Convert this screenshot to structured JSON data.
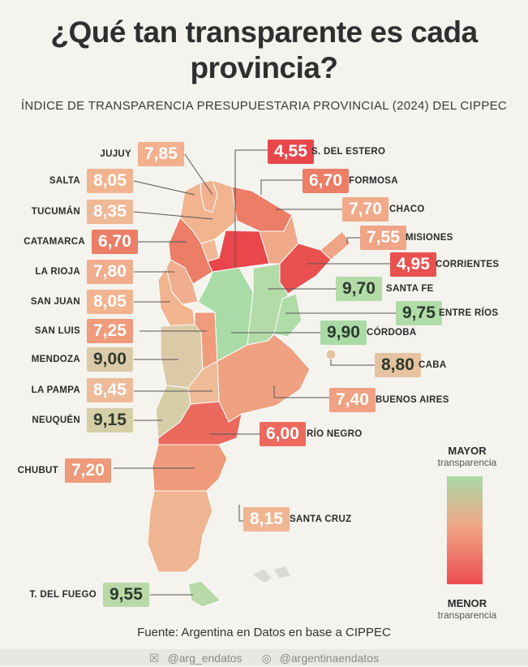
{
  "title_line1": "¿Qué tan transparente es cada",
  "title_line2": "provincia?",
  "subtitle": "ÍNDICE DE TRANSPARENCIA PRESUPUESTARIA PROVINCIAL (2024) DEL CIPPEC",
  "provinces": [
    {
      "name": "JUJUY",
      "value": "7,85",
      "color": "#f2b08f"
    },
    {
      "name": "SALTA",
      "value": "8,05",
      "color": "#f2b48f"
    },
    {
      "name": "TUCUMÁN",
      "value": "8,35",
      "color": "#efb896"
    },
    {
      "name": "CATAMARCA",
      "value": "6,70",
      "color": "#ec7d66"
    },
    {
      "name": "LA RIOJA",
      "value": "7,80",
      "color": "#f1ae8e"
    },
    {
      "name": "SAN JUAN",
      "value": "8,05",
      "color": "#f2b48f"
    },
    {
      "name": "SAN LUIS",
      "value": "7,25",
      "color": "#ef9b7c"
    },
    {
      "name": "MENDOZA",
      "value": "9,00",
      "color": "#dbc9a8"
    },
    {
      "name": "LA PAMPA",
      "value": "8,45",
      "color": "#edbb98"
    },
    {
      "name": "NEUQUÉN",
      "value": "9,15",
      "color": "#d6cea7"
    },
    {
      "name": "CHUBUT",
      "value": "7,20",
      "color": "#ef9a7a"
    },
    {
      "name": "T. DEL FUEGO",
      "value": "9,55",
      "color": "#b9d9a8"
    },
    {
      "name": "S. DEL ESTERO",
      "value": "4,55",
      "color": "#e9474b"
    },
    {
      "name": "FORMOSA",
      "value": "6,70",
      "color": "#ec7d66"
    },
    {
      "name": "CHACO",
      "value": "7,70",
      "color": "#f0aa8a"
    },
    {
      "name": "MISIONES",
      "value": "7,55",
      "color": "#f0a586"
    },
    {
      "name": "CORRIENTES",
      "value": "4,95",
      "color": "#e95050"
    },
    {
      "name": "SANTA FE",
      "value": "9,70",
      "color": "#b3dba8"
    },
    {
      "name": "ENTRE RÍOS",
      "value": "9,75",
      "color": "#b0dca8"
    },
    {
      "name": "CÓRDOBA",
      "value": "9,90",
      "color": "#a9dba6"
    },
    {
      "name": "CABA",
      "value": "8,80",
      "color": "#e5c3a1"
    },
    {
      "name": "BUENOS AIRES",
      "value": "7,40",
      "color": "#efa181"
    },
    {
      "name": "RÍO NEGRO",
      "value": "6,00",
      "color": "#eb6a5d"
    },
    {
      "name": "SANTA CRUZ",
      "value": "8,15",
      "color": "#f0b592"
    }
  ],
  "legend": {
    "top_big": "MAYOR",
    "top_small": "transparencia",
    "bottom_big": "MENOR",
    "bottom_small": "transparencia",
    "high_color": "#a8d9a6",
    "low_color": "#ed4d4e"
  },
  "source": "Fuente: Argentina en Datos en base a CIPPEC",
  "footer": {
    "handle1": "@arg_endatos",
    "handle2": "@argentinaendatos",
    "icon1": "x-logo-icon",
    "icon2": "instagram-icon"
  }
}
